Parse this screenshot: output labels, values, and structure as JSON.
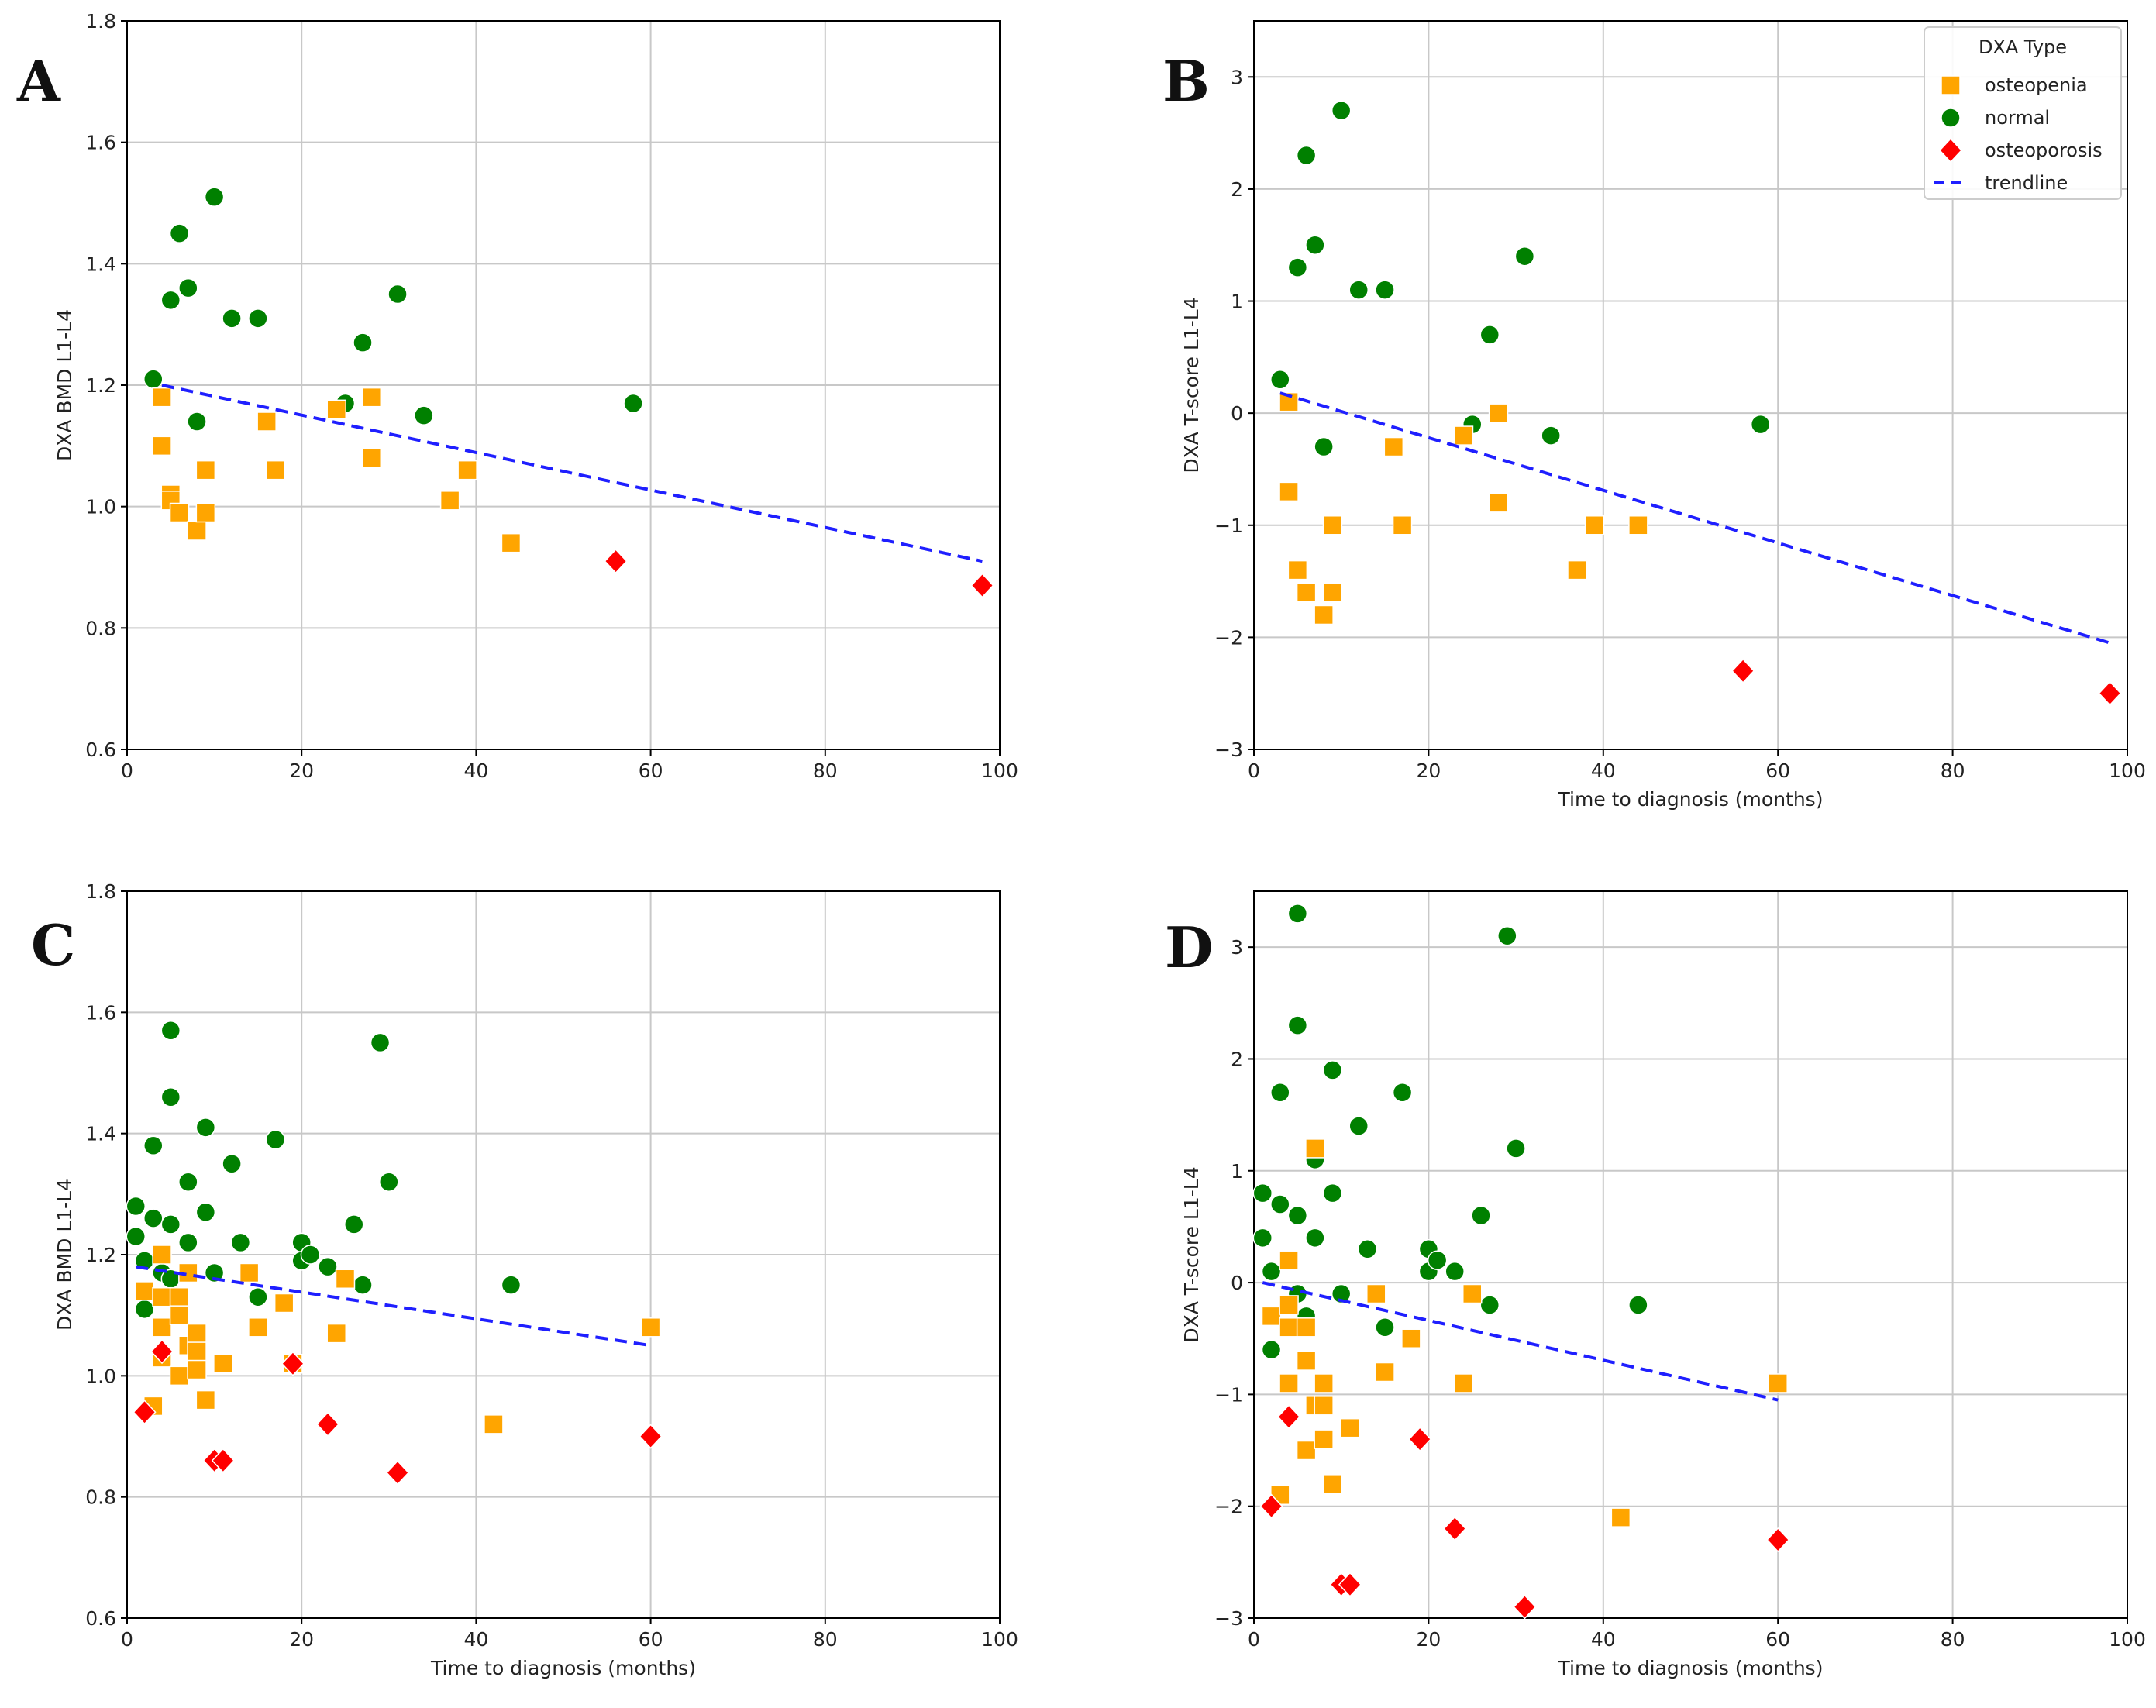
{
  "figure": {
    "legend": {
      "title": "DXA Type",
      "entries": [
        {
          "label": "osteopenia",
          "marker": "square",
          "color": "#FFA500"
        },
        {
          "label": "normal",
          "marker": "circle",
          "color": "#008000"
        },
        {
          "label": "osteoporosis",
          "marker": "diamond",
          "color": "#FF0000"
        },
        {
          "label": "trendline",
          "marker": "dashed-line",
          "color": "#0000FF"
        }
      ]
    },
    "colors": {
      "osteopenia": "#FFA500",
      "normal": "#008000",
      "osteoporosis": "#FF0000",
      "trendline": "#1f1fff",
      "grid": "#c8c8c8"
    }
  },
  "chart_data": [
    {
      "panel": "A",
      "type": "scatter",
      "title": "",
      "xlabel": "",
      "ylabel": "DXA BMD L1-L4",
      "xlim": [
        0,
        100
      ],
      "ylim": [
        0.6,
        1.8
      ],
      "xticks": [
        0,
        20,
        40,
        60,
        80,
        100
      ],
      "yticks": [
        0.6,
        0.8,
        1.0,
        1.2,
        1.4,
        1.6,
        1.8
      ],
      "ytick_decimals": 1,
      "grid": true,
      "legend": false,
      "series": [
        {
          "name": "normal",
          "x": [
            3,
            5,
            6,
            7,
            8,
            10,
            12,
            15,
            25,
            27,
            31,
            34,
            58
          ],
          "y": [
            1.21,
            1.34,
            1.45,
            1.36,
            1.14,
            1.51,
            1.31,
            1.31,
            1.17,
            1.27,
            1.35,
            1.15,
            1.17
          ]
        },
        {
          "name": "osteopenia",
          "x": [
            4,
            4,
            5,
            5,
            6,
            8,
            9,
            9,
            16,
            17,
            24,
            28,
            28,
            37,
            39,
            44
          ],
          "y": [
            1.18,
            1.1,
            1.02,
            1.01,
            0.99,
            0.96,
            1.06,
            0.99,
            1.14,
            1.06,
            1.16,
            1.18,
            1.08,
            1.01,
            1.06,
            0.94
          ]
        },
        {
          "name": "osteoporosis",
          "x": [
            56,
            98
          ],
          "y": [
            0.91,
            0.87
          ]
        }
      ],
      "trendline": {
        "x": [
          4,
          98
        ],
        "y": [
          1.2,
          0.91
        ]
      }
    },
    {
      "panel": "B",
      "type": "scatter",
      "title": "",
      "xlabel": "Time to diagnosis (months)",
      "ylabel": "DXA T-score L1-L4",
      "xlim": [
        0,
        100
      ],
      "ylim": [
        -3,
        3.5
      ],
      "xticks": [
        0,
        20,
        40,
        60,
        80,
        100
      ],
      "yticks": [
        -3,
        -2,
        -1,
        0,
        1,
        2,
        3
      ],
      "ytick_decimals": 0,
      "grid": true,
      "legend": true,
      "series": [
        {
          "name": "normal",
          "x": [
            3,
            5,
            6,
            7,
            8,
            10,
            12,
            15,
            25,
            27,
            31,
            34,
            58
          ],
          "y": [
            0.3,
            1.3,
            2.3,
            1.5,
            -0.3,
            2.7,
            1.1,
            1.1,
            -0.1,
            0.7,
            1.4,
            -0.2,
            -0.1
          ]
        },
        {
          "name": "osteopenia",
          "x": [
            4,
            4,
            5,
            6,
            8,
            9,
            9,
            16,
            17,
            24,
            28,
            28,
            37,
            39,
            44
          ],
          "y": [
            0.1,
            -0.7,
            -1.4,
            -1.6,
            -1.8,
            -1.0,
            -1.6,
            -0.3,
            -1.0,
            -0.2,
            0.0,
            -0.8,
            -1.4,
            -1.0,
            -1.0
          ]
        },
        {
          "name": "osteoporosis",
          "x": [
            56,
            98
          ],
          "y": [
            -2.3,
            -2.5
          ]
        }
      ],
      "trendline": {
        "x": [
          3,
          98
        ],
        "y": [
          0.18,
          -2.05
        ]
      }
    },
    {
      "panel": "C",
      "type": "scatter",
      "title": "",
      "xlabel": "Time to diagnosis (months)",
      "ylabel": "DXA BMD L1-L4",
      "xlim": [
        0,
        100
      ],
      "ylim": [
        0.6,
        1.8
      ],
      "xticks": [
        0,
        20,
        40,
        60,
        80,
        100
      ],
      "yticks": [
        0.6,
        0.8,
        1.0,
        1.2,
        1.4,
        1.6,
        1.8
      ],
      "ytick_decimals": 1,
      "grid": true,
      "legend": false,
      "series": [
        {
          "name": "normal",
          "x": [
            1,
            1,
            2,
            2,
            3,
            3,
            4,
            5,
            5,
            5,
            5,
            7,
            7,
            9,
            9,
            10,
            12,
            13,
            15,
            17,
            20,
            20,
            21,
            23,
            26,
            27,
            29,
            30,
            44
          ],
          "y": [
            1.28,
            1.23,
            1.19,
            1.11,
            1.38,
            1.26,
            1.17,
            1.57,
            1.46,
            1.25,
            1.16,
            1.32,
            1.22,
            1.41,
            1.27,
            1.17,
            1.35,
            1.22,
            1.13,
            1.39,
            1.22,
            1.19,
            1.2,
            1.18,
            1.25,
            1.15,
            1.55,
            1.32,
            1.15
          ]
        },
        {
          "name": "osteopenia",
          "x": [
            2,
            3,
            4,
            4,
            4,
            4,
            6,
            6,
            6,
            7,
            7,
            8,
            8,
            8,
            9,
            11,
            14,
            15,
            18,
            19,
            24,
            25,
            42,
            60
          ],
          "y": [
            1.14,
            0.95,
            1.2,
            1.13,
            1.08,
            1.03,
            1.13,
            1.1,
            1.0,
            1.17,
            1.05,
            1.07,
            1.04,
            1.01,
            0.96,
            1.02,
            1.17,
            1.08,
            1.12,
            1.02,
            1.07,
            1.16,
            0.92,
            1.08
          ]
        },
        {
          "name": "osteoporosis",
          "x": [
            2,
            4,
            10,
            11,
            19,
            23,
            31,
            60
          ],
          "y": [
            0.94,
            1.04,
            0.86,
            0.86,
            1.02,
            0.92,
            0.84,
            0.9
          ]
        }
      ],
      "trendline": {
        "x": [
          1,
          60
        ],
        "y": [
          1.18,
          1.05
        ]
      }
    },
    {
      "panel": "D",
      "type": "scatter",
      "title": "",
      "xlabel": "Time to diagnosis (months)",
      "ylabel": "DXA T-score L1-L4",
      "xlim": [
        0,
        100
      ],
      "ylim": [
        -3,
        3.5
      ],
      "xticks": [
        0,
        20,
        40,
        60,
        80,
        100
      ],
      "yticks": [
        -3,
        -2,
        -1,
        0,
        1,
        2,
        3
      ],
      "ytick_decimals": 0,
      "grid": true,
      "legend": false,
      "series": [
        {
          "name": "normal",
          "x": [
            1,
            1,
            2,
            2,
            3,
            3,
            5,
            5,
            5,
            5,
            6,
            7,
            7,
            9,
            9,
            10,
            12,
            13,
            15,
            17,
            20,
            20,
            21,
            23,
            26,
            27,
            29,
            30,
            44
          ],
          "y": [
            0.8,
            0.4,
            0.1,
            -0.6,
            1.7,
            0.7,
            3.3,
            2.3,
            0.6,
            -0.1,
            -0.3,
            1.1,
            0.4,
            1.9,
            0.8,
            -0.1,
            1.4,
            0.3,
            -0.4,
            1.7,
            0.3,
            0.1,
            0.2,
            0.1,
            0.6,
            -0.2,
            3.1,
            1.2,
            -0.2
          ]
        },
        {
          "name": "osteopenia",
          "x": [
            2,
            3,
            4,
            4,
            4,
            4,
            6,
            6,
            6,
            7,
            7,
            8,
            8,
            8,
            9,
            11,
            14,
            15,
            18,
            24,
            25,
            42,
            60
          ],
          "y": [
            -0.3,
            -1.9,
            0.2,
            -0.2,
            -0.4,
            -0.9,
            -0.4,
            -0.7,
            -1.5,
            1.2,
            -1.1,
            -0.9,
            -1.1,
            -1.4,
            -1.8,
            -1.3,
            -0.1,
            -0.8,
            -0.5,
            -0.9,
            -0.1,
            -2.1,
            -0.9
          ]
        },
        {
          "name": "osteoporosis",
          "x": [
            2,
            4,
            10,
            11,
            19,
            23,
            31,
            60
          ],
          "y": [
            -2.0,
            -1.2,
            -2.7,
            -2.7,
            -1.4,
            -2.2,
            -2.9,
            -2.3
          ]
        }
      ],
      "trendline": {
        "x": [
          1,
          60
        ],
        "y": [
          0.0,
          -1.05
        ]
      }
    }
  ]
}
